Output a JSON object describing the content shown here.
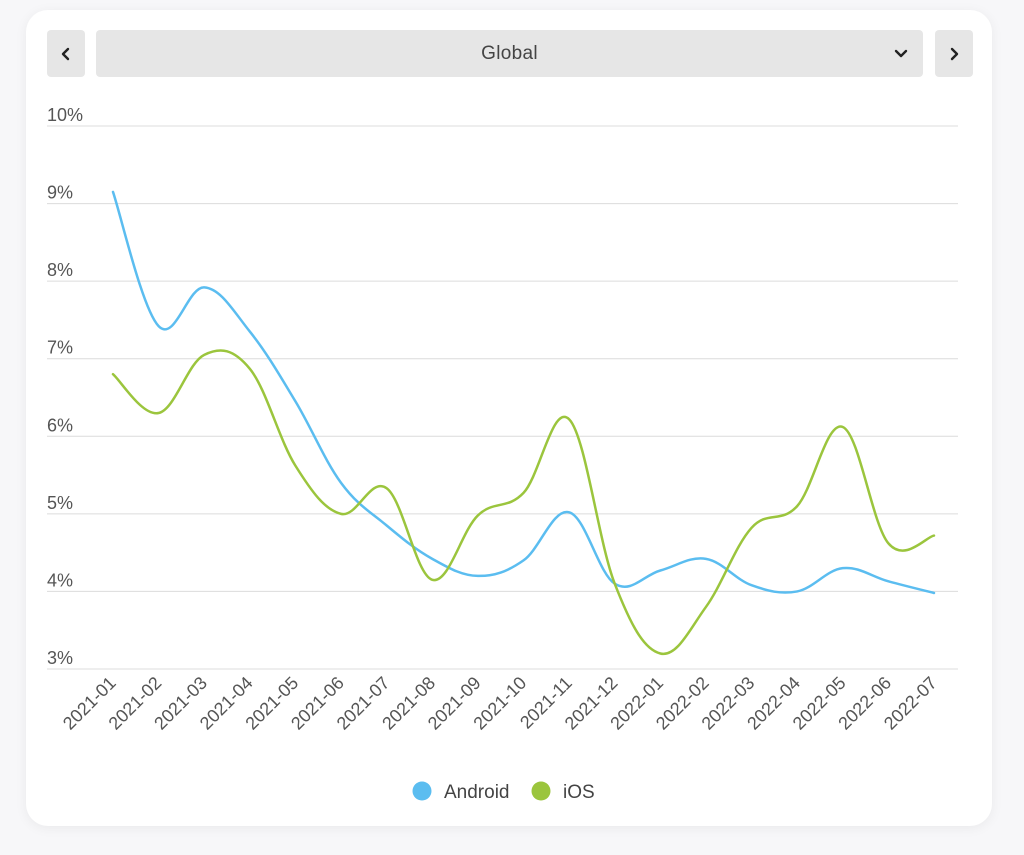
{
  "header": {
    "prev_icon": "chevron-left-icon",
    "next_icon": "chevron-right-icon",
    "region": "Global",
    "dropdown_icon": "chevron-down-icon"
  },
  "colors": {
    "android": "#5bbdf0",
    "ios": "#9bc53d",
    "grid": "#dcdcdc"
  },
  "chart_data": {
    "type": "line",
    "title": "",
    "xlabel": "",
    "ylabel": "",
    "ylim": [
      3,
      10
    ],
    "y_ticks": [
      "3%",
      "4%",
      "5%",
      "6%",
      "7%",
      "8%",
      "9%",
      "10%"
    ],
    "categories": [
      "2021-01",
      "2021-02",
      "2021-03",
      "2021-04",
      "2021-05",
      "2021-06",
      "2021-07",
      "2021-08",
      "2021-09",
      "2021-10",
      "2021-11",
      "2021-12",
      "2022-01",
      "2022-02",
      "2022-03",
      "2022-04",
      "2022-05",
      "2022-06",
      "2022-07"
    ],
    "series": [
      {
        "name": "Android",
        "values": [
          9.15,
          7.42,
          7.92,
          7.35,
          6.45,
          5.4,
          4.85,
          4.42,
          4.2,
          4.4,
          5.02,
          4.1,
          4.27,
          4.42,
          4.08,
          4.0,
          4.3,
          4.13,
          3.98
        ]
      },
      {
        "name": "iOS",
        "values": [
          6.8,
          6.3,
          7.05,
          6.87,
          5.62,
          5.0,
          5.33,
          4.15,
          4.98,
          5.27,
          6.22,
          4.1,
          3.2,
          3.8,
          4.82,
          5.1,
          6.12,
          4.62,
          4.72
        ]
      }
    ],
    "grid": true,
    "legend": "bottom-center"
  }
}
